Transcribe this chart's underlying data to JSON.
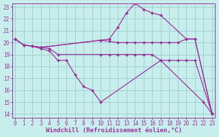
{
  "bg_color": "#c8eded",
  "grid_color": "#a0d0d0",
  "line_color": "#993399",
  "xlim_min": -0.3,
  "xlim_max": 23.3,
  "ylim_min": 13.7,
  "ylim_max": 23.3,
  "yticks": [
    14,
    15,
    16,
    17,
    18,
    19,
    20,
    21,
    22,
    23
  ],
  "xticks": [
    0,
    1,
    2,
    3,
    4,
    5,
    6,
    7,
    8,
    9,
    10,
    11,
    12,
    13,
    14,
    15,
    16,
    17,
    18,
    19,
    20,
    21,
    22,
    23
  ],
  "xlabel": "Windchill (Refroidissement éolien,°C)",
  "lines": [
    {
      "x": [
        0,
        1,
        2,
        3,
        10,
        11,
        12,
        13,
        14,
        15,
        16,
        17,
        20,
        21,
        23
      ],
      "y": [
        20.3,
        19.8,
        19.7,
        19.6,
        20.2,
        20.3,
        21.3,
        22.5,
        23.3,
        22.8,
        22.5,
        22.3,
        20.3,
        20.3,
        14.0
      ]
    },
    {
      "x": [
        0,
        1,
        2,
        3,
        10,
        11,
        12,
        13,
        14,
        15,
        16,
        17,
        18,
        19,
        20,
        21,
        23
      ],
      "y": [
        20.3,
        19.8,
        19.7,
        19.6,
        20.2,
        20.1,
        20.0,
        20.0,
        20.0,
        20.0,
        20.0,
        20.0,
        20.0,
        20.0,
        20.3,
        20.3,
        14.0
      ]
    },
    {
      "x": [
        0,
        1,
        2,
        3,
        4,
        5,
        10,
        11,
        12,
        13,
        14,
        15,
        16,
        17,
        18,
        19,
        20,
        21,
        23
      ],
      "y": [
        20.3,
        19.8,
        19.7,
        19.6,
        19.5,
        19.0,
        19.0,
        19.0,
        19.0,
        19.0,
        19.0,
        19.0,
        19.0,
        18.5,
        18.5,
        18.5,
        18.5,
        18.5,
        14.0
      ]
    },
    {
      "x": [
        0,
        1,
        2,
        3,
        4,
        5,
        6,
        7,
        8,
        9,
        10,
        17,
        22,
        23
      ],
      "y": [
        20.3,
        19.8,
        19.7,
        19.5,
        19.3,
        18.5,
        18.5,
        17.3,
        16.3,
        16.0,
        15.0,
        18.5,
        15.0,
        14.0
      ]
    }
  ],
  "marker": "D",
  "markersize": 2.0,
  "linewidth": 0.9,
  "tick_fontsize": 5.5,
  "xlabel_fontsize": 6.5
}
